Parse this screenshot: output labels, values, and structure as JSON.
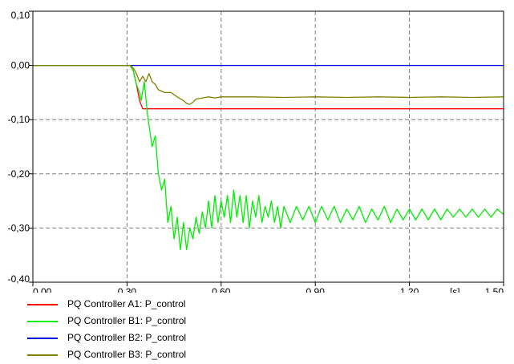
{
  "chart_data": {
    "type": "line",
    "title": "",
    "xlabel": "",
    "ylabel": "",
    "x_unit": "[s]",
    "xlim": [
      0.0,
      1.5
    ],
    "ylim": [
      -0.4,
      0.1
    ],
    "x_ticks": [
      0.0,
      0.3,
      0.6,
      0.9,
      1.2,
      1.5
    ],
    "x_tick_labels": [
      "0,00",
      "0,30",
      "0,60",
      "0,90",
      "1,20",
      "1,50"
    ],
    "y_ticks": [
      0.1,
      0.0,
      -0.1,
      -0.2,
      -0.3,
      -0.4
    ],
    "y_tick_labels": [
      "0,10",
      "0,00",
      "-0,10",
      "-0,20",
      "-0,30",
      "-0,40"
    ],
    "grid": true,
    "legend_position": "bottom-left",
    "series": [
      {
        "name": "PQ Controller A1: P_control",
        "color": "#ff0000",
        "x": [
          0.0,
          0.31,
          0.32,
          0.33,
          0.34,
          0.35,
          1.5
        ],
        "y": [
          0.0,
          0.0,
          -0.01,
          -0.035,
          -0.065,
          -0.08,
          -0.08
        ]
      },
      {
        "name": "PQ Controller B1: P_control",
        "color": "#00ee00",
        "x": [
          0.0,
          0.31,
          0.32,
          0.33,
          0.34,
          0.345,
          0.355,
          0.365,
          0.38,
          0.39,
          0.4,
          0.41,
          0.42,
          0.43,
          0.44,
          0.45,
          0.46,
          0.47,
          0.48,
          0.49,
          0.5,
          0.51,
          0.52,
          0.53,
          0.54,
          0.55,
          0.56,
          0.57,
          0.58,
          0.59,
          0.6,
          0.61,
          0.62,
          0.63,
          0.64,
          0.65,
          0.66,
          0.67,
          0.68,
          0.69,
          0.7,
          0.71,
          0.72,
          0.73,
          0.74,
          0.75,
          0.76,
          0.77,
          0.78,
          0.79,
          0.8,
          0.82,
          0.84,
          0.86,
          0.88,
          0.9,
          0.92,
          0.94,
          0.96,
          0.98,
          1.0,
          1.02,
          1.04,
          1.06,
          1.08,
          1.1,
          1.12,
          1.14,
          1.16,
          1.18,
          1.2,
          1.22,
          1.24,
          1.26,
          1.28,
          1.3,
          1.32,
          1.34,
          1.36,
          1.38,
          1.4,
          1.42,
          1.44,
          1.46,
          1.48,
          1.5
        ],
        "y": [
          0.0,
          0.0,
          -0.01,
          -0.035,
          -0.05,
          -0.065,
          -0.03,
          -0.09,
          -0.15,
          -0.13,
          -0.2,
          -0.23,
          -0.21,
          -0.29,
          -0.26,
          -0.32,
          -0.28,
          -0.34,
          -0.29,
          -0.34,
          -0.3,
          -0.32,
          -0.28,
          -0.31,
          -0.27,
          -0.3,
          -0.25,
          -0.3,
          -0.24,
          -0.29,
          -0.25,
          -0.28,
          -0.24,
          -0.29,
          -0.23,
          -0.28,
          -0.24,
          -0.29,
          -0.24,
          -0.3,
          -0.25,
          -0.28,
          -0.24,
          -0.29,
          -0.26,
          -0.28,
          -0.25,
          -0.29,
          -0.26,
          -0.3,
          -0.26,
          -0.29,
          -0.26,
          -0.285,
          -0.26,
          -0.29,
          -0.26,
          -0.285,
          -0.26,
          -0.29,
          -0.265,
          -0.285,
          -0.26,
          -0.29,
          -0.265,
          -0.285,
          -0.26,
          -0.29,
          -0.265,
          -0.285,
          -0.265,
          -0.285,
          -0.265,
          -0.285,
          -0.265,
          -0.285,
          -0.265,
          -0.28,
          -0.265,
          -0.28,
          -0.265,
          -0.28,
          -0.265,
          -0.28,
          -0.265,
          -0.275
        ]
      },
      {
        "name": "PQ Controller B2: P_control",
        "color": "#0000dd",
        "x": [
          0.0,
          1.5
        ],
        "y": [
          0.0,
          0.0
        ]
      },
      {
        "name": "PQ Controller B3: P_control",
        "color": "#808000",
        "x": [
          0.0,
          0.31,
          0.32,
          0.33,
          0.34,
          0.35,
          0.36,
          0.37,
          0.38,
          0.39,
          0.4,
          0.42,
          0.44,
          0.46,
          0.48,
          0.49,
          0.5,
          0.51,
          0.52,
          0.54,
          0.56,
          0.58,
          0.6,
          0.64,
          0.7,
          0.8,
          0.9,
          1.0,
          1.1,
          1.2,
          1.3,
          1.4,
          1.5
        ],
        "y": [
          0.0,
          0.0,
          -0.005,
          -0.015,
          -0.03,
          -0.02,
          -0.03,
          -0.015,
          -0.03,
          -0.035,
          -0.045,
          -0.05,
          -0.05,
          -0.058,
          -0.065,
          -0.07,
          -0.072,
          -0.068,
          -0.062,
          -0.06,
          -0.058,
          -0.06,
          -0.058,
          -0.058,
          -0.058,
          -0.059,
          -0.058,
          -0.059,
          -0.058,
          -0.059,
          -0.058,
          -0.059,
          -0.058
        ]
      }
    ]
  }
}
